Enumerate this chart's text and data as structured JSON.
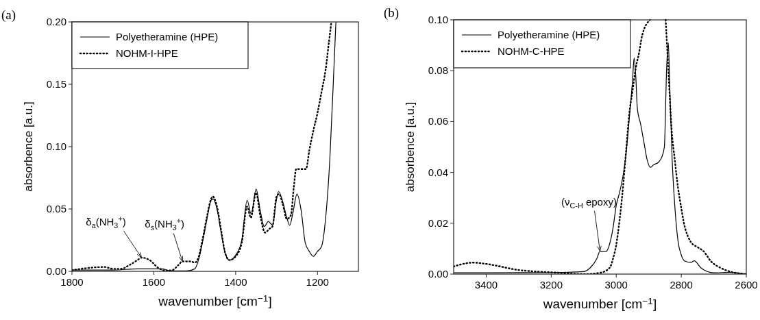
{
  "chart_data": [
    {
      "type": "line",
      "title": "(a)",
      "xlabel": "wavenumber [cm$^{−1}$]",
      "ylabel": "absorbence [a.u.]",
      "xlim": [
        1800,
        1100
      ],
      "xticks": [
        1800,
        1600,
        1400,
        1200
      ],
      "ylim": [
        0,
        0.2
      ],
      "yticks": [
        {
          "value": 0,
          "label": "0.00"
        },
        {
          "value": 0.05,
          "label": "0.05"
        },
        {
          "value": 0.1,
          "label": "0.10"
        },
        {
          "value": 0.15,
          "label": "0.15"
        },
        {
          "value": 0.2,
          "label": "0.20"
        }
      ],
      "legend": "top left",
      "grid": false,
      "annotations": [
        {
          "text": "δ$_{a}$(NH$_{3}$$^{+}$)",
          "x": 1630,
          "y": 0.011
        },
        {
          "text": "δ$_{s}$(NH$_{3}$$^{+}$)",
          "x": 1530,
          "y": 0.008
        }
      ],
      "series": [
        {
          "name": "Polyetheramine (HPE)",
          "color": "#000000",
          "line_style": "solid",
          "x": [
            1800,
            1700,
            1640,
            1600,
            1580,
            1560,
            1520,
            1500,
            1490,
            1480,
            1470,
            1460,
            1455,
            1445,
            1435,
            1425,
            1415,
            1400,
            1385,
            1372,
            1362,
            1350,
            1340,
            1330,
            1320,
            1310,
            1300,
            1295,
            1285,
            1275,
            1268,
            1260,
            1250,
            1240,
            1230,
            1220,
            1210,
            1200,
            1190,
            1180,
            1170,
            1160,
            1155
          ],
          "values": [
            0.001,
            0.001,
            0.002,
            0.002,
            0.002,
            0.0005,
            0.0003,
            0.002,
            0.01,
            0.025,
            0.042,
            0.057,
            0.058,
            0.049,
            0.03,
            0.014,
            0.009,
            0.013,
            0.025,
            0.057,
            0.046,
            0.066,
            0.049,
            0.036,
            0.04,
            0.037,
            0.058,
            0.064,
            0.056,
            0.043,
            0.037,
            0.047,
            0.062,
            0.049,
            0.023,
            0.016,
            0.012,
            0.016,
            0.02,
            0.043,
            0.089,
            0.162,
            0.2
          ]
        },
        {
          "name": "NOHM-I-HPE",
          "color": "#000000",
          "line_style": "dotted",
          "x": [
            1800,
            1720,
            1700,
            1680,
            1660,
            1640,
            1630,
            1610,
            1590,
            1570,
            1555,
            1540,
            1530,
            1510,
            1500,
            1490,
            1480,
            1470,
            1460,
            1456,
            1445,
            1435,
            1425,
            1415,
            1400,
            1385,
            1372,
            1363,
            1350,
            1340,
            1328,
            1318,
            1310,
            1300,
            1294,
            1285,
            1275,
            1265,
            1258,
            1252,
            1240,
            1228,
            1220,
            1210,
            1200,
            1190,
            1180,
            1172,
            1166
          ],
          "values": [
            0.001,
            0.0035,
            0.002,
            0.002,
            0.005,
            0.009,
            0.011,
            0.009,
            0.003,
            0.0005,
            0.001,
            0.005,
            0.008,
            0.008,
            0.007,
            0.012,
            0.027,
            0.044,
            0.058,
            0.06,
            0.051,
            0.032,
            0.014,
            0.009,
            0.012,
            0.023,
            0.052,
            0.043,
            0.063,
            0.045,
            0.031,
            0.034,
            0.036,
            0.06,
            0.062,
            0.054,
            0.042,
            0.045,
            0.067,
            0.082,
            0.082,
            0.082,
            0.097,
            0.113,
            0.127,
            0.144,
            0.162,
            0.184,
            0.2
          ]
        }
      ]
    },
    {
      "type": "line",
      "title": "(b)",
      "xlabel": "wavenumber [cm$^{−1}$]",
      "ylabel": "absorbence [a.u.]",
      "xlim": [
        3500,
        2600
      ],
      "xticks": [
        3400,
        3200,
        3000,
        2800,
        2600
      ],
      "ylim": [
        0,
        0.1
      ],
      "yticks": [
        {
          "value": 0,
          "label": "0.00"
        },
        {
          "value": 0.02,
          "label": "0.02"
        },
        {
          "value": 0.04,
          "label": "0.04"
        },
        {
          "value": 0.06,
          "label": "0.06"
        },
        {
          "value": 0.08,
          "label": "0.08"
        },
        {
          "value": 0.1,
          "label": "0.10"
        }
      ],
      "legend": "top left",
      "grid": false,
      "annotations": [
        {
          "text": "(ν$_{C-H}$ epoxy)",
          "x": 3050,
          "y": 0.009
        }
      ],
      "series": [
        {
          "name": "Polyetheramine (HPE)",
          "color": "#000000",
          "line_style": "solid",
          "x": [
            3500,
            3400,
            3200,
            3100,
            3080,
            3060,
            3050,
            3040,
            3030,
            3020,
            3010,
            3000,
            2990,
            2980,
            2970,
            2960,
            2950,
            2945,
            2940,
            2935,
            2925,
            2915,
            2905,
            2895,
            2885,
            2870,
            2860,
            2852,
            2845,
            2840,
            2835,
            2828,
            2820,
            2810,
            2800,
            2790,
            2770,
            2760,
            2740,
            2720,
            2700,
            2650,
            2600
          ],
          "values": [
            0.0005,
            0.0005,
            0.0006,
            0.001,
            0.0025,
            0.006,
            0.009,
            0.009,
            0.009,
            0.012,
            0.018,
            0.027,
            0.032,
            0.038,
            0.047,
            0.061,
            0.076,
            0.085,
            0.078,
            0.065,
            0.059,
            0.052,
            0.045,
            0.042,
            0.043,
            0.044,
            0.046,
            0.05,
            0.081,
            0.091,
            0.072,
            0.045,
            0.027,
            0.013,
            0.0075,
            0.0052,
            0.0046,
            0.0052,
            0.0025,
            0.001,
            0.0005,
            0.0007,
            0
          ]
        },
        {
          "name": "NOHM-C-HPE",
          "color": "#000000",
          "line_style": "dotted",
          "x": [
            3500,
            3440,
            3400,
            3300,
            3200,
            3100,
            3050,
            3020,
            3010,
            3000,
            2990,
            2980,
            2970,
            2960,
            2950,
            2940,
            2930,
            2920,
            2896,
            2872,
            2848,
            2840,
            2830,
            2820,
            2810,
            2800,
            2790,
            2780,
            2770,
            2750,
            2730,
            2710,
            2680,
            2650,
            2600
          ],
          "values": [
            0.003,
            0.0045,
            0.004,
            0.0016,
            0.0007,
            0,
            0.0005,
            0.0025,
            0.006,
            0.0115,
            0.021,
            0.033,
            0.048,
            0.063,
            0.072,
            0.081,
            0.087,
            0.094,
            0.1,
            null,
            0.1,
            0.081,
            0.0575,
            0.045,
            0.034,
            0.026,
            0.019,
            0.015,
            0.0125,
            0.0106,
            0.0088,
            0.0052,
            0.0025,
            0.001,
            0
          ]
        }
      ]
    }
  ]
}
